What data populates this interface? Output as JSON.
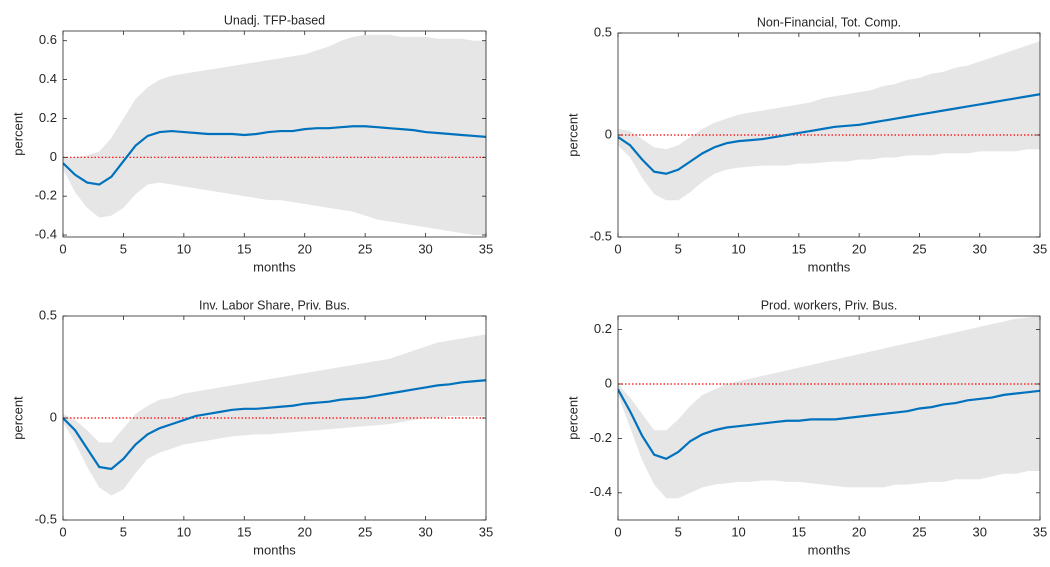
{
  "chart_data": [
    {
      "type": "line",
      "title": "Unadj. TFP-based",
      "xlabel": "months",
      "ylabel": "percent",
      "x": [
        0,
        1,
        2,
        3,
        4,
        5,
        6,
        7,
        8,
        9,
        10,
        11,
        12,
        13,
        14,
        15,
        16,
        17,
        18,
        19,
        20,
        21,
        22,
        23,
        24,
        25,
        26,
        27,
        28,
        29,
        30,
        31,
        32,
        33,
        34,
        35
      ],
      "xlim": [
        0,
        35
      ],
      "xticks": [
        0,
        5,
        10,
        15,
        20,
        25,
        30,
        35
      ],
      "ylim": [
        -0.41,
        0.65
      ],
      "yticks": [
        -0.4,
        -0.2,
        0,
        0.2,
        0.4,
        0.6
      ],
      "series": [
        {
          "color": "#0072bd",
          "values": [
            -0.03,
            -0.09,
            -0.13,
            -0.14,
            -0.1,
            -0.02,
            0.06,
            0.11,
            0.13,
            0.135,
            0.13,
            0.125,
            0.12,
            0.12,
            0.12,
            0.115,
            0.12,
            0.13,
            0.135,
            0.135,
            0.145,
            0.15,
            0.15,
            0.155,
            0.16,
            0.16,
            0.155,
            0.15,
            0.145,
            0.14,
            0.13,
            0.125,
            0.12,
            0.115,
            0.11,
            0.105
          ]
        }
      ],
      "band": {
        "color": "#e6e6e6",
        "upper": [
          0.0,
          0.0,
          0.01,
          0.03,
          0.1,
          0.2,
          0.3,
          0.36,
          0.4,
          0.42,
          0.43,
          0.44,
          0.45,
          0.46,
          0.47,
          0.48,
          0.49,
          0.5,
          0.51,
          0.52,
          0.53,
          0.55,
          0.57,
          0.6,
          0.62,
          0.63,
          0.63,
          0.63,
          0.62,
          0.62,
          0.62,
          0.61,
          0.61,
          0.61,
          0.6,
          0.6
        ],
        "lower": [
          -0.06,
          -0.18,
          -0.26,
          -0.31,
          -0.3,
          -0.26,
          -0.19,
          -0.14,
          -0.13,
          -0.14,
          -0.15,
          -0.16,
          -0.17,
          -0.18,
          -0.19,
          -0.2,
          -0.21,
          -0.22,
          -0.22,
          -0.23,
          -0.24,
          -0.25,
          -0.26,
          -0.27,
          -0.28,
          -0.3,
          -0.32,
          -0.33,
          -0.34,
          -0.35,
          -0.36,
          -0.37,
          -0.38,
          -0.39,
          -0.4,
          -0.4
        ]
      },
      "reference_line": {
        "value": 0,
        "color": "#ff0000"
      }
    },
    {
      "type": "line",
      "title": "Non-Financial, Tot. Comp.",
      "xlabel": "months",
      "ylabel": "percent",
      "x": [
        0,
        1,
        2,
        3,
        4,
        5,
        6,
        7,
        8,
        9,
        10,
        11,
        12,
        13,
        14,
        15,
        16,
        17,
        18,
        19,
        20,
        21,
        22,
        23,
        24,
        25,
        26,
        27,
        28,
        29,
        30,
        31,
        32,
        33,
        34,
        35
      ],
      "xlim": [
        0,
        35
      ],
      "xticks": [
        0,
        5,
        10,
        15,
        20,
        25,
        30,
        35
      ],
      "ylim": [
        -0.5,
        0.5
      ],
      "yticks": [
        -0.5,
        0,
        0.5
      ],
      "series": [
        {
          "color": "#0072bd",
          "values": [
            -0.01,
            -0.05,
            -0.12,
            -0.18,
            -0.19,
            -0.17,
            -0.13,
            -0.09,
            -0.06,
            -0.04,
            -0.03,
            -0.025,
            -0.02,
            -0.01,
            0.0,
            0.01,
            0.02,
            0.03,
            0.04,
            0.045,
            0.05,
            0.06,
            0.07,
            0.08,
            0.09,
            0.1,
            0.11,
            0.12,
            0.13,
            0.14,
            0.15,
            0.16,
            0.17,
            0.18,
            0.19,
            0.2
          ]
        }
      ],
      "band": {
        "color": "#e6e6e6",
        "upper": [
          0.03,
          0.02,
          -0.02,
          -0.06,
          -0.07,
          -0.05,
          -0.01,
          0.03,
          0.06,
          0.08,
          0.1,
          0.11,
          0.12,
          0.13,
          0.14,
          0.15,
          0.16,
          0.18,
          0.19,
          0.2,
          0.21,
          0.22,
          0.24,
          0.25,
          0.27,
          0.28,
          0.3,
          0.31,
          0.33,
          0.34,
          0.36,
          0.38,
          0.4,
          0.42,
          0.44,
          0.46
        ],
        "lower": [
          -0.05,
          -0.11,
          -0.21,
          -0.29,
          -0.32,
          -0.32,
          -0.28,
          -0.23,
          -0.19,
          -0.17,
          -0.16,
          -0.155,
          -0.15,
          -0.15,
          -0.15,
          -0.14,
          -0.14,
          -0.135,
          -0.13,
          -0.13,
          -0.12,
          -0.12,
          -0.11,
          -0.11,
          -0.1,
          -0.1,
          -0.1,
          -0.09,
          -0.09,
          -0.09,
          -0.08,
          -0.08,
          -0.08,
          -0.08,
          -0.07,
          -0.07
        ]
      },
      "reference_line": {
        "value": 0,
        "color": "#ff0000"
      }
    },
    {
      "type": "line",
      "title": "Inv. Labor Share, Priv. Bus.",
      "xlabel": "months",
      "ylabel": "percent",
      "x": [
        0,
        1,
        2,
        3,
        4,
        5,
        6,
        7,
        8,
        9,
        10,
        11,
        12,
        13,
        14,
        15,
        16,
        17,
        18,
        19,
        20,
        21,
        22,
        23,
        24,
        25,
        26,
        27,
        28,
        29,
        30,
        31,
        32,
        33,
        34,
        35
      ],
      "xlim": [
        0,
        35
      ],
      "xticks": [
        0,
        5,
        10,
        15,
        20,
        25,
        30,
        35
      ],
      "ylim": [
        -0.5,
        0.5
      ],
      "yticks": [
        -0.5,
        0,
        0.5
      ],
      "series": [
        {
          "color": "#0072bd",
          "values": [
            0.0,
            -0.06,
            -0.15,
            -0.24,
            -0.25,
            -0.2,
            -0.13,
            -0.08,
            -0.05,
            -0.03,
            -0.01,
            0.01,
            0.02,
            0.03,
            0.04,
            0.045,
            0.045,
            0.05,
            0.055,
            0.06,
            0.07,
            0.075,
            0.08,
            0.09,
            0.095,
            0.1,
            0.11,
            0.12,
            0.13,
            0.14,
            0.15,
            0.16,
            0.165,
            0.175,
            0.18,
            0.185
          ]
        }
      ],
      "band": {
        "color": "#e6e6e6",
        "upper": [
          0.02,
          -0.01,
          -0.06,
          -0.12,
          -0.12,
          -0.05,
          0.02,
          0.06,
          0.09,
          0.1,
          0.12,
          0.13,
          0.14,
          0.15,
          0.16,
          0.17,
          0.18,
          0.19,
          0.2,
          0.21,
          0.22,
          0.23,
          0.24,
          0.25,
          0.26,
          0.27,
          0.28,
          0.29,
          0.31,
          0.33,
          0.35,
          0.37,
          0.38,
          0.39,
          0.4,
          0.41
        ],
        "lower": [
          -0.02,
          -0.12,
          -0.24,
          -0.34,
          -0.38,
          -0.35,
          -0.27,
          -0.2,
          -0.17,
          -0.15,
          -0.13,
          -0.12,
          -0.11,
          -0.1,
          -0.09,
          -0.085,
          -0.08,
          -0.08,
          -0.075,
          -0.07,
          -0.065,
          -0.06,
          -0.055,
          -0.05,
          -0.045,
          -0.04,
          -0.035,
          -0.03,
          -0.02,
          -0.01,
          0.0,
          0.0,
          0.01,
          0.01,
          0.01,
          0.01
        ]
      },
      "reference_line": {
        "value": 0,
        "color": "#ff0000"
      }
    },
    {
      "type": "line",
      "title": "Prod. workers, Priv. Bus.",
      "xlabel": "months",
      "ylabel": "percent",
      "x": [
        0,
        1,
        2,
        3,
        4,
        5,
        6,
        7,
        8,
        9,
        10,
        11,
        12,
        13,
        14,
        15,
        16,
        17,
        18,
        19,
        20,
        21,
        22,
        23,
        24,
        25,
        26,
        27,
        28,
        29,
        30,
        31,
        32,
        33,
        34,
        35
      ],
      "xlim": [
        0,
        35
      ],
      "xticks": [
        0,
        5,
        10,
        15,
        20,
        25,
        30,
        35
      ],
      "ylim": [
        -0.5,
        0.25
      ],
      "yticks": [
        -0.4,
        -0.2,
        0,
        0.2
      ],
      "series": [
        {
          "color": "#0072bd",
          "values": [
            -0.02,
            -0.1,
            -0.19,
            -0.26,
            -0.275,
            -0.25,
            -0.21,
            -0.185,
            -0.17,
            -0.16,
            -0.155,
            -0.15,
            -0.145,
            -0.14,
            -0.135,
            -0.135,
            -0.13,
            -0.13,
            -0.13,
            -0.125,
            -0.12,
            -0.115,
            -0.11,
            -0.105,
            -0.1,
            -0.09,
            -0.085,
            -0.075,
            -0.07,
            -0.06,
            -0.055,
            -0.05,
            -0.04,
            -0.035,
            -0.03,
            -0.025
          ]
        }
      ],
      "band": {
        "color": "#e6e6e6",
        "upper": [
          0.0,
          -0.05,
          -0.11,
          -0.17,
          -0.17,
          -0.13,
          -0.08,
          -0.04,
          -0.02,
          0.0,
          0.01,
          0.02,
          0.03,
          0.04,
          0.05,
          0.06,
          0.07,
          0.08,
          0.09,
          0.1,
          0.11,
          0.12,
          0.13,
          0.14,
          0.15,
          0.16,
          0.17,
          0.18,
          0.19,
          0.2,
          0.21,
          0.22,
          0.23,
          0.24,
          0.245,
          0.25
        ],
        "lower": [
          -0.04,
          -0.16,
          -0.28,
          -0.37,
          -0.42,
          -0.42,
          -0.4,
          -0.38,
          -0.37,
          -0.365,
          -0.36,
          -0.36,
          -0.355,
          -0.355,
          -0.36,
          -0.36,
          -0.365,
          -0.37,
          -0.375,
          -0.38,
          -0.38,
          -0.38,
          -0.38,
          -0.37,
          -0.37,
          -0.365,
          -0.36,
          -0.36,
          -0.35,
          -0.35,
          -0.35,
          -0.34,
          -0.33,
          -0.33,
          -0.32,
          -0.32
        ]
      },
      "reference_line": {
        "value": 0,
        "color": "#ff0000"
      }
    }
  ]
}
